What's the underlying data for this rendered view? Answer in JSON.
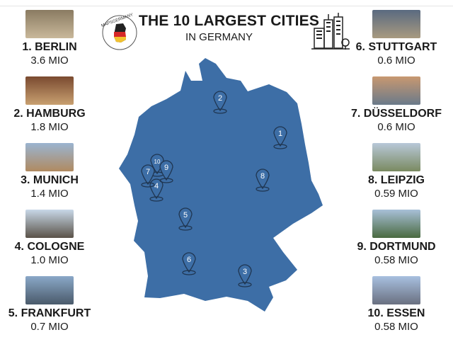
{
  "header": {
    "title": "THE 10 LARGEST CITIES",
    "subtitle": "IN GERMANY",
    "logo_text": "MAPSGERMANY",
    "skyline_icon": "city-skyline-icon"
  },
  "colors": {
    "map": "#3d6ea6",
    "pin_outline": "#1f3550"
  },
  "cities": [
    {
      "rank": "1",
      "label": "1. BERLIN",
      "population": "3.6 MIO",
      "photo": [
        "#8a7b62",
        "#c9b89a"
      ]
    },
    {
      "rank": "2",
      "label": "2. HAMBURG",
      "population": "1.8 MIO",
      "photo": [
        "#7a4a30",
        "#c8a070"
      ]
    },
    {
      "rank": "3",
      "label": "3. MUNICH",
      "population": "1.4 MIO",
      "photo": [
        "#9ab4d0",
        "#b08a60"
      ]
    },
    {
      "rank": "4",
      "label": "4. COLOGNE",
      "population": "1.0 MIO",
      "photo": [
        "#c8d8e8",
        "#5a5248"
      ]
    },
    {
      "rank": "5",
      "label": "5. FRANKFURT",
      "population": "0.7 MIO",
      "photo": [
        "#8aa8c8",
        "#4a5a6a"
      ]
    },
    {
      "rank": "6",
      "label": "6. STUTTGART",
      "population": "0.6 MIO",
      "photo": [
        "#5a6a80",
        "#a89a80"
      ]
    },
    {
      "rank": "7",
      "label": "7. DÜSSELDORF",
      "population": "0.6 MIO",
      "photo": [
        "#c89870",
        "#6a7a8a"
      ]
    },
    {
      "rank": "8",
      "label": "8. LEIPZIG",
      "population": "0.59 MIO",
      "photo": [
        "#b8c8d8",
        "#7a8a60"
      ]
    },
    {
      "rank": "9",
      "label": "9. DORTMUND",
      "population": "0.58 MIO",
      "photo": [
        "#a8c0d8",
        "#4a6a40"
      ]
    },
    {
      "rank": "10",
      "label": "10. ESSEN",
      "population": "0.58 MIO",
      "photo": [
        "#a8c0e0",
        "#6a7080"
      ]
    }
  ]
}
